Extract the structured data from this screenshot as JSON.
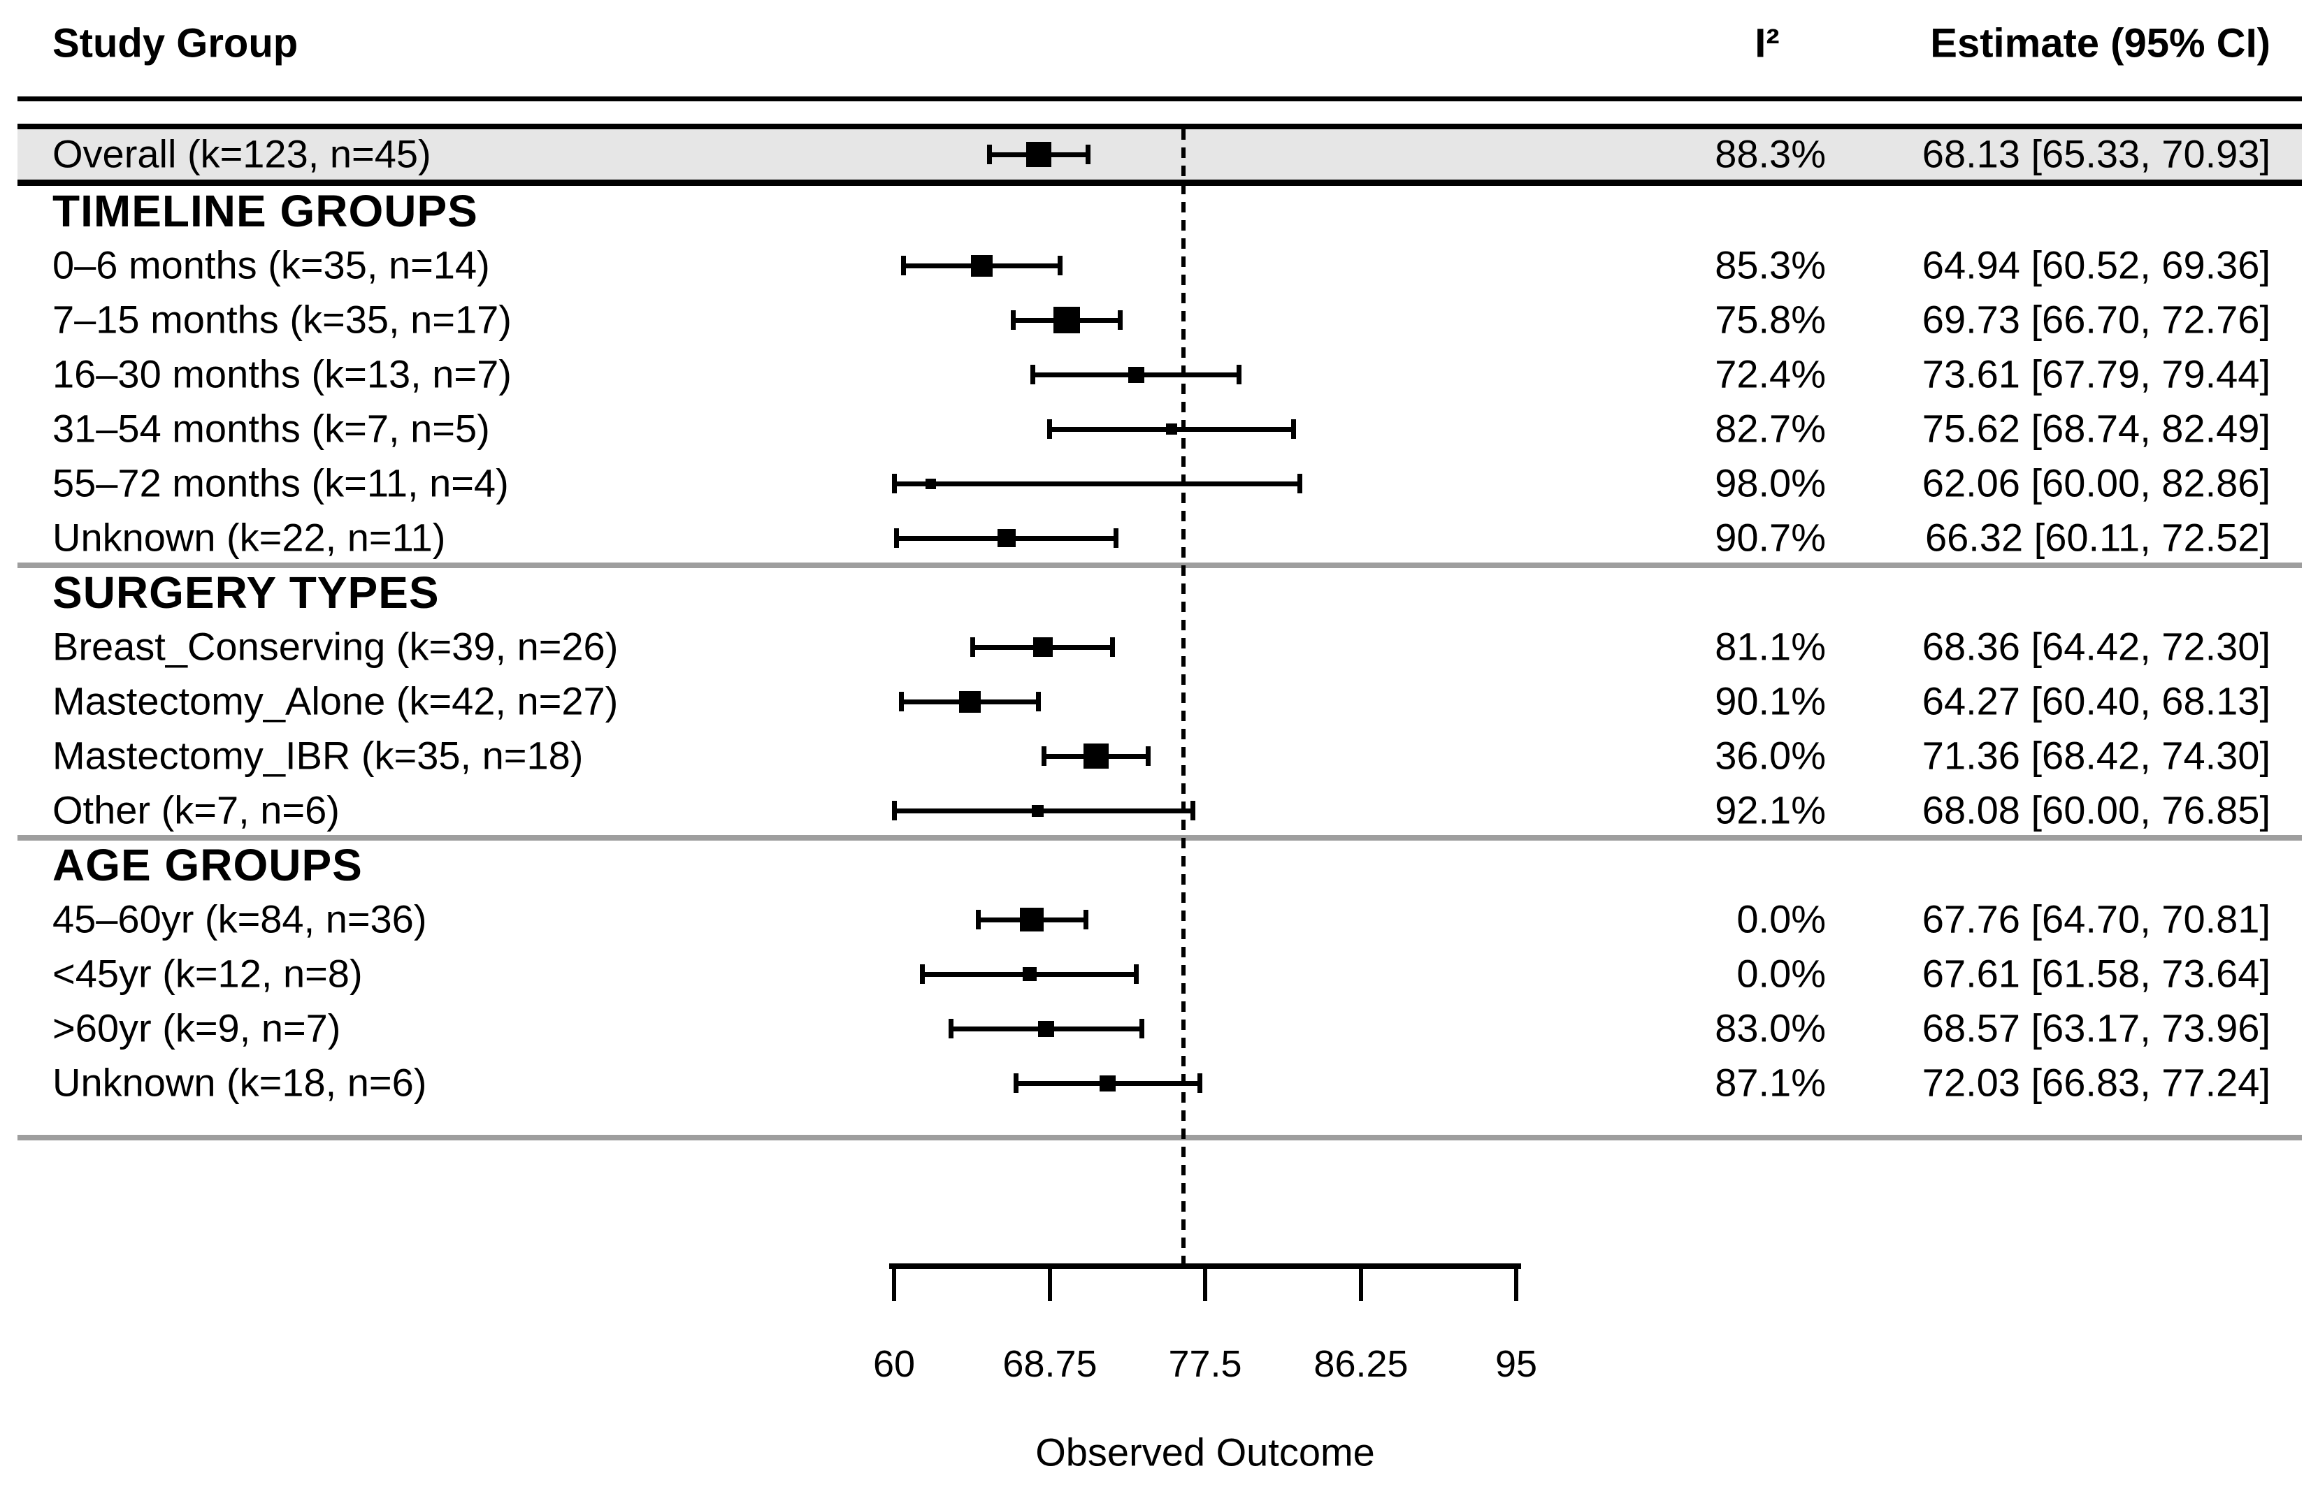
{
  "header": {
    "study_group": "Study Group",
    "i2": "I²",
    "estimate": "Estimate (95% CI)"
  },
  "axis": {
    "label": "Observed Outcome",
    "tick_labels": [
      "60",
      "68.75",
      "77.5",
      "86.25",
      "95"
    ]
  },
  "colors": {
    "marker": "#000000",
    "overall_band": "#e6e6e6",
    "section_rule_gray": "#9e9e9e",
    "text": "#000000",
    "background": "#ffffff",
    "reference_line": "#000000"
  },
  "chart_data": {
    "type": "forest",
    "title": "",
    "xlabel": "Observed Outcome",
    "xlim": [
      60,
      95
    ],
    "x_ticks": [
      60,
      68.75,
      77.5,
      86.25,
      95
    ],
    "reference_line": 76.3,
    "grid": false,
    "columns": [
      "Study Group",
      "I²",
      "Estimate (95% CI)"
    ],
    "overall": {
      "label": "Overall (k=123, n=45)",
      "i2": "88.3%",
      "estimate_text": "68.13 [65.33, 70.93]",
      "mean": 68.13,
      "ci_low": 65.33,
      "ci_high": 70.93,
      "marker_size": 36
    },
    "sections": [
      {
        "title": "TIMELINE GROUPS",
        "rows": [
          {
            "label": "0–6 months (k=35, n=14)",
            "i2": "85.3%",
            "estimate_text": "64.94 [60.52, 69.36]",
            "mean": 64.94,
            "ci_low": 60.52,
            "ci_high": 69.36,
            "marker_size": 31
          },
          {
            "label": "7–15 months (k=35, n=17)",
            "i2": "75.8%",
            "estimate_text": "69.73 [66.70, 72.76]",
            "mean": 69.73,
            "ci_low": 66.7,
            "ci_high": 72.76,
            "marker_size": 38
          },
          {
            "label": "16–30 months (k=13, n=7)",
            "i2": "72.4%",
            "estimate_text": "73.61 [67.79, 79.44]",
            "mean": 73.61,
            "ci_low": 67.79,
            "ci_high": 79.44,
            "marker_size": 23
          },
          {
            "label": "31–54 months (k=7, n=5)",
            "i2": "82.7%",
            "estimate_text": "75.62 [68.74, 82.49]",
            "mean": 75.62,
            "ci_low": 68.74,
            "ci_high": 82.49,
            "marker_size": 16
          },
          {
            "label": "55–72 months (k=11, n=4)",
            "i2": "98.0%",
            "estimate_text": "62.06 [60.00, 82.86]",
            "mean": 62.06,
            "ci_low": 60.0,
            "ci_high": 82.86,
            "marker_size": 15
          },
          {
            "label": "Unknown (k=22, n=11)",
            "i2": "90.7%",
            "estimate_text": "66.32 [60.11, 72.52]",
            "mean": 66.32,
            "ci_low": 60.11,
            "ci_high": 72.52,
            "marker_size": 26
          }
        ]
      },
      {
        "title": "SURGERY TYPES",
        "rows": [
          {
            "label": "Breast_Conserving (k=39, n=26)",
            "i2": "81.1%",
            "estimate_text": "68.36 [64.42, 72.30]",
            "mean": 68.36,
            "ci_low": 64.42,
            "ci_high": 72.3,
            "marker_size": 28
          },
          {
            "label": "Mastectomy_Alone (k=42, n=27)",
            "i2": "90.1%",
            "estimate_text": "64.27 [60.40, 68.13]",
            "mean": 64.27,
            "ci_low": 60.4,
            "ci_high": 68.13,
            "marker_size": 31
          },
          {
            "label": "Mastectomy_IBR (k=35, n=18)",
            "i2": "36.0%",
            "estimate_text": "71.36 [68.42, 74.30]",
            "mean": 71.36,
            "ci_low": 68.42,
            "ci_high": 74.3,
            "marker_size": 36
          },
          {
            "label": "Other (k=7, n=6)",
            "i2": "92.1%",
            "estimate_text": "68.08 [60.00, 76.85]",
            "mean": 68.08,
            "ci_low": 60.0,
            "ci_high": 76.85,
            "marker_size": 17
          }
        ]
      },
      {
        "title": "AGE GROUPS",
        "rows": [
          {
            "label": "45–60yr (k=84, n=36)",
            "i2": "0.0%",
            "estimate_text": "67.76 [64.70, 70.81]",
            "mean": 67.76,
            "ci_low": 64.7,
            "ci_high": 70.81,
            "marker_size": 34
          },
          {
            "label": "<45yr (k=12, n=8)",
            "i2": "0.0%",
            "estimate_text": "67.61 [61.58, 73.64]",
            "mean": 67.61,
            "ci_low": 61.58,
            "ci_high": 73.64,
            "marker_size": 20
          },
          {
            "label": ">60yr (k=9, n=7)",
            "i2": "83.0%",
            "estimate_text": "68.57 [63.17, 73.96]",
            "mean": 68.57,
            "ci_low": 63.17,
            "ci_high": 73.96,
            "marker_size": 23
          },
          {
            "label": "Unknown (k=18, n=6)",
            "i2": "87.1%",
            "estimate_text": "72.03 [66.83, 77.24]",
            "mean": 72.03,
            "ci_low": 66.83,
            "ci_high": 77.24,
            "marker_size": 23
          }
        ]
      }
    ]
  }
}
